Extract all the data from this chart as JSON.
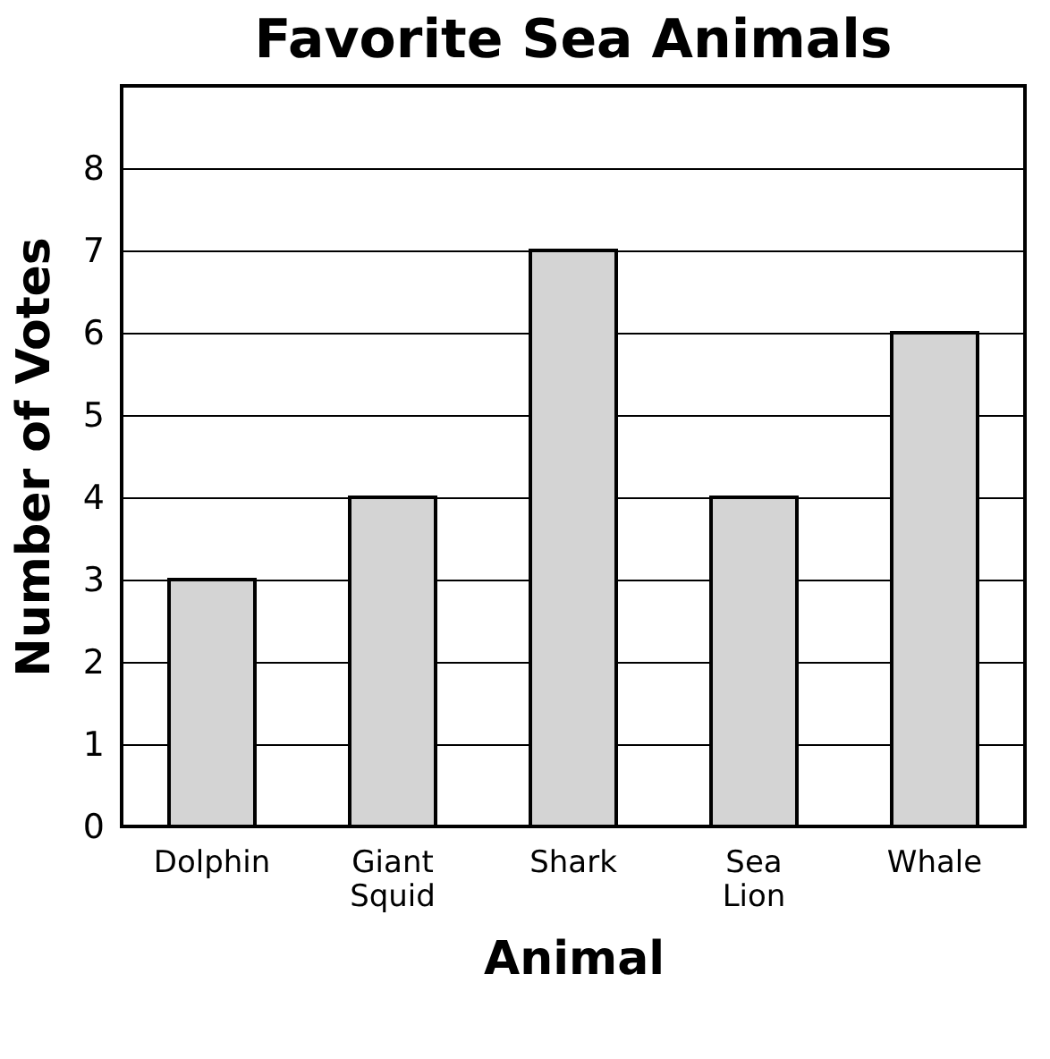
{
  "chart_data": {
    "type": "bar",
    "title": "Favorite Sea Animals",
    "xlabel": "Animal",
    "ylabel": "Number of Votes",
    "categories": [
      "Dolphin",
      "Giant Squid",
      "Shark",
      "Sea Lion",
      "Whale"
    ],
    "values": [
      3,
      4,
      7,
      4,
      6
    ],
    "color": "#d4d4d4",
    "ylim": [
      0,
      9
    ],
    "yticks": [
      0,
      1,
      2,
      3,
      4,
      5,
      6,
      7,
      8
    ],
    "grid": "y"
  }
}
